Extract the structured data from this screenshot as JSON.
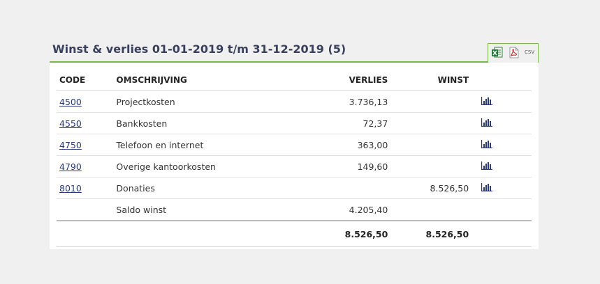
{
  "panel": {
    "title": "Winst & verlies 01-01-2019 t/m 31-12-2019 (5)",
    "export": {
      "csv_label": "CSV"
    }
  },
  "table": {
    "headers": {
      "code": "CODE",
      "description": "OMSCHRIJVING",
      "loss": "VERLIES",
      "profit": "WINST"
    },
    "rows": [
      {
        "code": "4500",
        "description": "Projectkosten",
        "loss": "3.736,13",
        "profit": ""
      },
      {
        "code": "4550",
        "description": "Bankkosten",
        "loss": "72,37",
        "profit": ""
      },
      {
        "code": "4750",
        "description": "Telefoon en internet",
        "loss": "363,00",
        "profit": ""
      },
      {
        "code": "4790",
        "description": "Overige kantoorkosten",
        "loss": "149,60",
        "profit": ""
      },
      {
        "code": "8010",
        "description": "Donaties",
        "loss": "",
        "profit": "8.526,50"
      }
    ],
    "saldo": {
      "label": "Saldo winst",
      "loss": "4.205,40",
      "profit": ""
    },
    "totals": {
      "loss": "8.526,50",
      "profit": "8.526,50"
    }
  },
  "colors": {
    "accent": "#7ab648",
    "title": "#3a3f5c",
    "link": "#2a3a78",
    "icon": "#2a3a78"
  },
  "icons": {
    "row_action": "bar-chart-icon",
    "export_excel": "excel-icon",
    "export_pdf": "pdf-icon"
  }
}
